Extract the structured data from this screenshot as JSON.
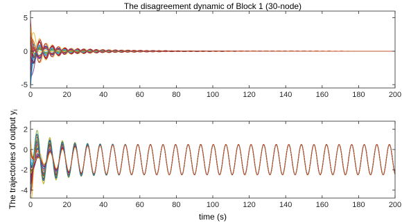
{
  "chart_data": [
    {
      "type": "line",
      "title": "The disagreement dynamic of Block 1 (30-node)",
      "xlabel": "",
      "ylabel": "",
      "xlim": [
        0,
        200
      ],
      "ylim": [
        -5.5,
        6
      ],
      "xticks": [
        "0",
        "20",
        "40",
        "60",
        "80",
        "100",
        "120",
        "140",
        "160",
        "180",
        "200"
      ],
      "yticks": [
        "-5",
        "0",
        "5"
      ],
      "grid": false,
      "n_series": 30,
      "series_colors": [
        "#0072BD",
        "#D95319",
        "#EDB120",
        "#7E2F8E",
        "#77AC30",
        "#4DBEEE",
        "#A2142F"
      ],
      "dynamics": {
        "initial_spread": 5.5,
        "oscillation_period": 6.9,
        "disagreement_decay": [
          {
            "t": 0,
            "amplitude": 5.5
          },
          {
            "t": 10,
            "amplitude": 2.2
          },
          {
            "t": 20,
            "amplitude": 1.0
          },
          {
            "t": 40,
            "amplitude": 0.5
          },
          {
            "t": 60,
            "amplitude": 0.3
          },
          {
            "t": 80,
            "amplitude": 0.15
          },
          {
            "t": 120,
            "amplitude": 0.05
          },
          {
            "t": 200,
            "amplitude": 0.0
          }
        ]
      }
    },
    {
      "type": "line",
      "title": "",
      "xlabel": "time (s)",
      "ylabel": "The trajectories of output y",
      "ylabel_subscript": "i",
      "xlim": [
        0,
        200
      ],
      "ylim": [
        -4.8,
        2.8
      ],
      "xticks": [
        "0",
        "20",
        "40",
        "60",
        "80",
        "100",
        "120",
        "140",
        "160",
        "180",
        "200"
      ],
      "yticks": [
        "-4",
        "-2",
        "0",
        "2"
      ],
      "grid": false,
      "n_series": 30,
      "series_colors": [
        "#0072BD",
        "#D95319",
        "#EDB120",
        "#7E2F8E",
        "#77AC30",
        "#4DBEEE",
        "#A2142F"
      ],
      "dynamics": {
        "consensus_center": -1.0,
        "consensus_amplitude": 1.5,
        "oscillation_period": 6.9,
        "consensus_trajectory": [
          {
            "t": 0,
            "y": -4.5
          },
          {
            "t": 3,
            "y": 2.5
          },
          {
            "t": 200,
            "y": -2.5
          }
        ]
      }
    }
  ]
}
